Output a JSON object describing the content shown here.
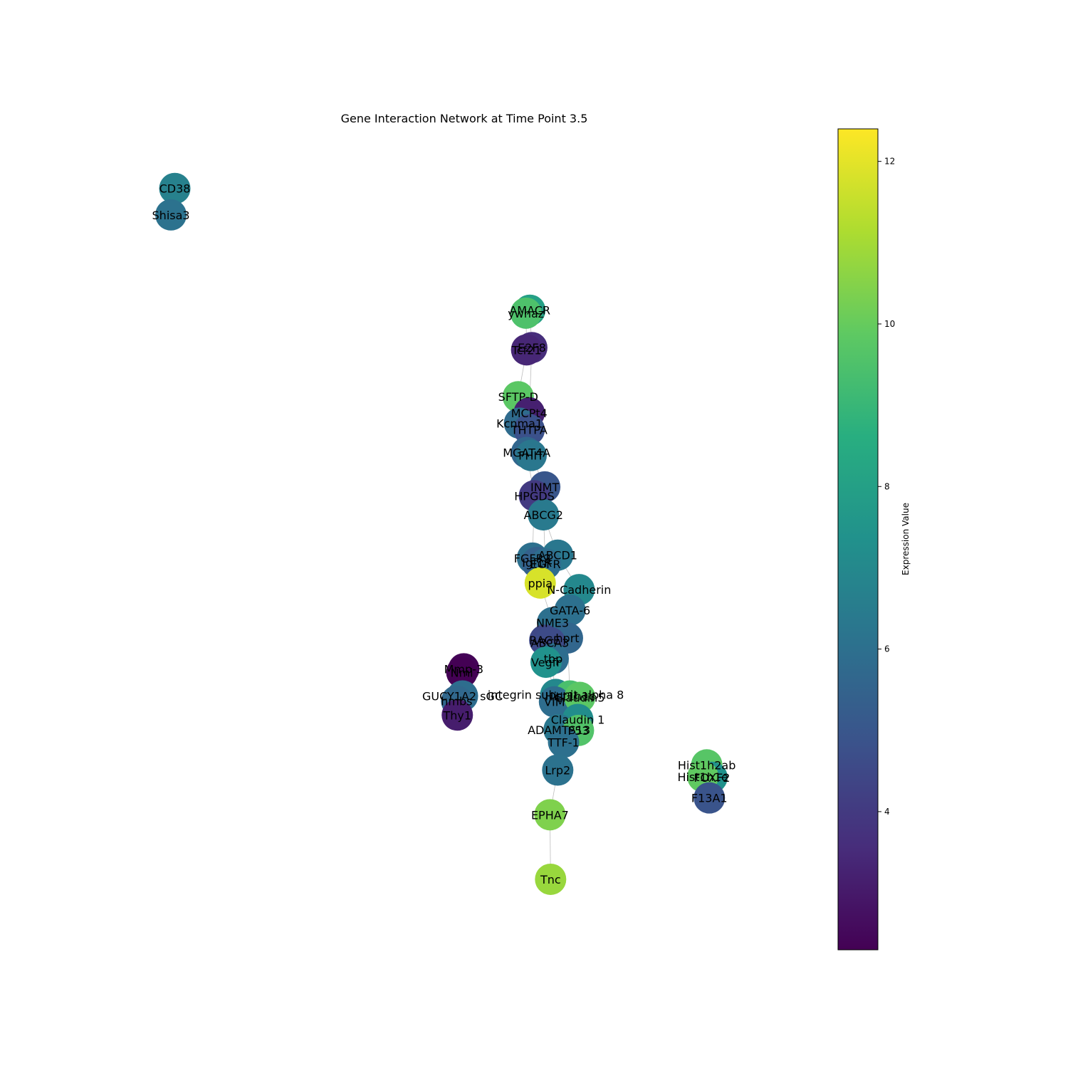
{
  "chart_data": {
    "type": "network",
    "title": "Gene Interaction Network at Time Point 3.5",
    "colorbar": {
      "label": "Expression Value",
      "min": 2.3,
      "max": 12.4,
      "ticks": [
        4,
        6,
        8,
        10,
        12
      ],
      "colormap": "viridis"
    },
    "nodes": [
      {
        "id": "CD38",
        "x": 0.061,
        "y": 0.976,
        "value": 6.7
      },
      {
        "id": "Shisa3",
        "x": 0.055,
        "y": 0.94,
        "value": 6.1
      },
      {
        "id": "AMACR",
        "x": 0.609,
        "y": 0.81,
        "value": 8.0
      },
      {
        "id": "ywhaz",
        "x": 0.603,
        "y": 0.806,
        "value": 9.5
      },
      {
        "id": "E2F8",
        "x": 0.612,
        "y": 0.759,
        "value": 3.6
      },
      {
        "id": "Tcf21",
        "x": 0.604,
        "y": 0.756,
        "value": 3.4
      },
      {
        "id": "SFTP-D",
        "x": 0.591,
        "y": 0.692,
        "value": 9.8
      },
      {
        "id": "MCPt4",
        "x": 0.608,
        "y": 0.67,
        "value": 3.2
      },
      {
        "id": "Kcnma1",
        "x": 0.593,
        "y": 0.656,
        "value": 5.8
      },
      {
        "id": "THTPA",
        "x": 0.608,
        "y": 0.647,
        "value": 4.8
      },
      {
        "id": "MGAT4A",
        "x": 0.604,
        "y": 0.616,
        "value": 5.6
      },
      {
        "id": "FHIT",
        "x": 0.611,
        "y": 0.612,
        "value": 6.3
      },
      {
        "id": "INMT",
        "x": 0.632,
        "y": 0.569,
        "value": 5.0
      },
      {
        "id": "HPGDS",
        "x": 0.616,
        "y": 0.557,
        "value": 4.0
      },
      {
        "id": "ABCG2",
        "x": 0.63,
        "y": 0.531,
        "value": 6.4
      },
      {
        "id": "ABCD1",
        "x": 0.652,
        "y": 0.476,
        "value": 6.3
      },
      {
        "id": "FGFR2",
        "x": 0.613,
        "y": 0.472,
        "value": 6.0
      },
      {
        "id": "Igf1R",
        "x": 0.62,
        "y": 0.466,
        "value": 5.4
      },
      {
        "id": "EGFR",
        "x": 0.633,
        "y": 0.464,
        "value": 5.9
      },
      {
        "id": "ppia",
        "x": 0.625,
        "y": 0.438,
        "value": 11.8
      },
      {
        "id": "N-Cadherin",
        "x": 0.685,
        "y": 0.429,
        "value": 7.0
      },
      {
        "id": "GATA-6",
        "x": 0.671,
        "y": 0.401,
        "value": 6.0
      },
      {
        "id": "NME3",
        "x": 0.644,
        "y": 0.384,
        "value": 6.0
      },
      {
        "id": "hprt",
        "x": 0.667,
        "y": 0.363,
        "value": 5.6
      },
      {
        "id": "RAGE",
        "x": 0.632,
        "y": 0.36,
        "value": 4.5
      },
      {
        "id": "ABCA3",
        "x": 0.64,
        "y": 0.357,
        "value": 4.6
      },
      {
        "id": "tbp",
        "x": 0.645,
        "y": 0.335,
        "value": 5.9
      },
      {
        "id": "Vegfr",
        "x": 0.634,
        "y": 0.33,
        "value": 7.4
      },
      {
        "id": "Mmp-3",
        "x": 0.507,
        "y": 0.321,
        "value": 2.4
      },
      {
        "id": "Nmi",
        "x": 0.504,
        "y": 0.316,
        "value": 2.3
      },
      {
        "id": "GUCY1A2 sGC",
        "x": 0.505,
        "y": 0.284,
        "value": 5.9
      },
      {
        "id": "hmbs",
        "x": 0.496,
        "y": 0.277,
        "value": 5.7
      },
      {
        "id": "Thy1",
        "x": 0.497,
        "y": 0.258,
        "value": 3.1
      },
      {
        "id": "integrin subunit alpha 8",
        "x": 0.649,
        "y": 0.286,
        "value": 7.0
      },
      {
        "id": "Hist1h1c",
        "x": 0.671,
        "y": 0.284,
        "value": 9.4
      },
      {
        "id": "VIM",
        "x": 0.647,
        "y": 0.276,
        "value": 5.9
      },
      {
        "id": "Claudin5",
        "x": 0.686,
        "y": 0.282,
        "value": 9.8
      },
      {
        "id": "Claudin 1",
        "x": 0.683,
        "y": 0.252,
        "value": 7.2
      },
      {
        "id": "ADAMTS13",
        "x": 0.654,
        "y": 0.238,
        "value": 6.3
      },
      {
        "id": "P53",
        "x": 0.684,
        "y": 0.237,
        "value": 9.6
      },
      {
        "id": "TTF-1",
        "x": 0.661,
        "y": 0.221,
        "value": 6.0
      },
      {
        "id": "Lrp2",
        "x": 0.652,
        "y": 0.183,
        "value": 6.1
      },
      {
        "id": "Hist1h2ab",
        "x": 0.882,
        "y": 0.19,
        "value": 9.7
      },
      {
        "id": "FOXF2",
        "x": 0.89,
        "y": 0.173,
        "value": 7.4
      },
      {
        "id": "Hist1h1e",
        "x": 0.876,
        "y": 0.174,
        "value": 9.9
      },
      {
        "id": "F13A1",
        "x": 0.886,
        "y": 0.145,
        "value": 4.9
      },
      {
        "id": "EPHA7",
        "x": 0.64,
        "y": 0.122,
        "value": 10.4
      },
      {
        "id": "Tnc",
        "x": 0.641,
        "y": 0.034,
        "value": 10.8
      }
    ],
    "edges": [
      [
        "AMACR",
        "E2F8"
      ],
      [
        "ywhaz",
        "Tcf21"
      ],
      [
        "Tcf21",
        "SFTP-D"
      ],
      [
        "E2F8",
        "MCPt4"
      ],
      [
        "SFTP-D",
        "Kcnma1"
      ],
      [
        "MCPt4",
        "THTPA"
      ],
      [
        "Kcnma1",
        "MGAT4A"
      ],
      [
        "THTPA",
        "FHIT"
      ],
      [
        "FHIT",
        "INMT"
      ],
      [
        "MGAT4A",
        "HPGDS"
      ],
      [
        "INMT",
        "ABCG2"
      ],
      [
        "HPGDS",
        "FGFR2"
      ],
      [
        "ABCG2",
        "EGFR"
      ],
      [
        "ABCG2",
        "ABCD1"
      ],
      [
        "FGFR2",
        "ppia"
      ],
      [
        "Igf1R",
        "ppia"
      ],
      [
        "ppia",
        "NME3"
      ],
      [
        "ABCD1",
        "N-Cadherin"
      ],
      [
        "N-Cadherin",
        "GATA-6"
      ],
      [
        "GATA-6",
        "hprt"
      ],
      [
        "NME3",
        "RAGE"
      ],
      [
        "NME3",
        "ABCA3"
      ],
      [
        "ABCA3",
        "tbp"
      ],
      [
        "RAGE",
        "Vegfr"
      ],
      [
        "tbp",
        "VIM"
      ],
      [
        "Vegfr",
        "integrin subunit alpha 8"
      ],
      [
        "hprt",
        "Hist1h1c"
      ],
      [
        "VIM",
        "ADAMTS13"
      ],
      [
        "Hist1h1c",
        "Claudin5"
      ],
      [
        "Claudin5",
        "Claudin 1"
      ],
      [
        "Claudin 1",
        "P53"
      ],
      [
        "ADAMTS13",
        "TTF-1"
      ],
      [
        "P53",
        "TTF-1"
      ],
      [
        "TTF-1",
        "Lrp2"
      ],
      [
        "Lrp2",
        "EPHA7"
      ],
      [
        "EPHA7",
        "Tnc"
      ],
      [
        "Mmp-3",
        "Nmi"
      ],
      [
        "Nmi",
        "GUCY1A2 sGC"
      ],
      [
        "GUCY1A2 sGC",
        "hmbs"
      ],
      [
        "hmbs",
        "Thy1"
      ],
      [
        "Hist1h2ab",
        "Hist1h1e"
      ],
      [
        "Hist1h1e",
        "FOXF2"
      ],
      [
        "FOXF2",
        "F13A1"
      ],
      [
        "CD38",
        "Shisa3"
      ]
    ]
  }
}
